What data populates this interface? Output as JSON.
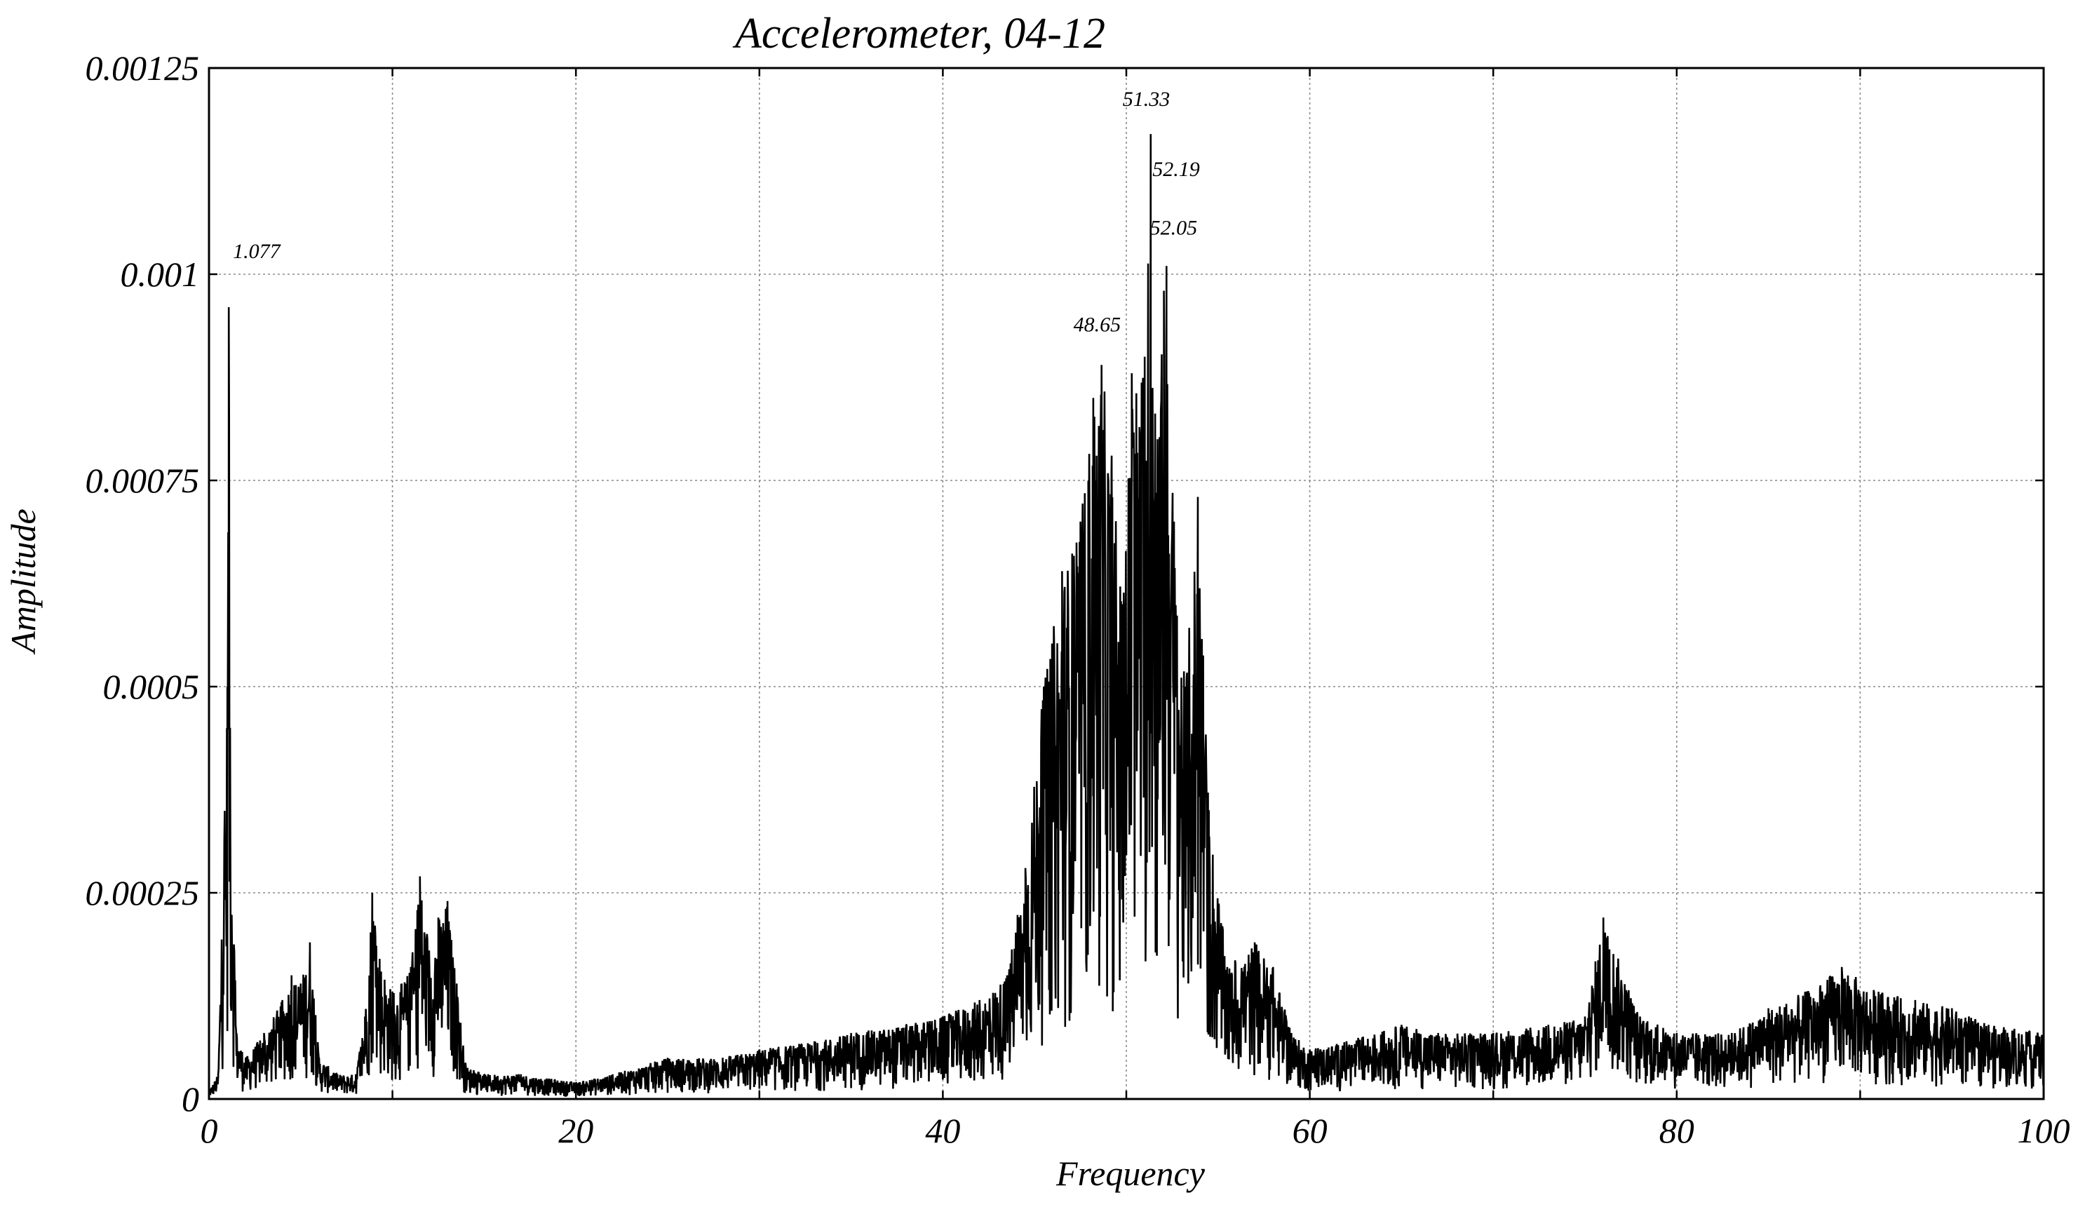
{
  "chart_data": {
    "type": "line",
    "title": "Accelerometer, 04-12",
    "xlabel": "Frequency",
    "ylabel": "Amplitude",
    "xlim": [
      0,
      100
    ],
    "ylim": [
      0,
      0.00125
    ],
    "grid": true,
    "x_ticks": [
      0,
      20,
      40,
      60,
      80,
      100
    ],
    "x_tick_labels": [
      "0",
      "20",
      "40",
      "60",
      "80",
      "100"
    ],
    "x_minor_ticks": [
      10,
      30,
      50,
      70,
      90
    ],
    "y_ticks": [
      0,
      0.00025,
      0.0005,
      0.00075,
      0.001,
      0.00125
    ],
    "y_tick_labels": [
      "0",
      "0.00025",
      "0.0005",
      "0.00075",
      "0.001",
      "0.00125"
    ],
    "series": [
      {
        "color": "#000000",
        "x": [
          0,
          0.5,
          1.0,
          1.077,
          1.15,
          1.5,
          2,
          3,
          4,
          4.5,
          5,
          5.5,
          6,
          7,
          8,
          8.5,
          8.9,
          9.3,
          10,
          10.5,
          11,
          11.5,
          12,
          12.5,
          13,
          13.5,
          14,
          15,
          17,
          20,
          22,
          25,
          28,
          30,
          33,
          35,
          38,
          40,
          42,
          43.5,
          44.5,
          45.5,
          46.5,
          47.5,
          48.2,
          48.65,
          49.2,
          49.8,
          50.3,
          51.0,
          51.33,
          51.7,
          52.05,
          52.19,
          52.6,
          53.2,
          53.9,
          54.5,
          55.5,
          57,
          58,
          59,
          60,
          62,
          65,
          67,
          70,
          73,
          75,
          76,
          78,
          80,
          83,
          85,
          87,
          89,
          91,
          93,
          95,
          97,
          100
        ],
        "values": [
          1e-05,
          3e-05,
          0.0005,
          0.00096,
          0.00045,
          8e-05,
          5e-05,
          8e-05,
          0.00012,
          0.00015,
          0.00014,
          0.00019,
          5e-05,
          3e-05,
          3e-05,
          0.0001,
          0.00025,
          0.00017,
          0.00013,
          0.00014,
          0.00016,
          0.00027,
          0.00018,
          0.00022,
          0.00024,
          0.00014,
          4e-05,
          3e-05,
          3e-05,
          2e-05,
          3e-05,
          5e-05,
          5e-05,
          6e-05,
          7e-05,
          8e-05,
          9e-05,
          0.0001,
          0.00012,
          0.00015,
          0.00028,
          0.0005,
          0.00064,
          0.0007,
          0.00085,
          0.00089,
          0.00078,
          0.0006,
          0.00088,
          0.0009,
          0.00117,
          0.0008,
          0.00098,
          0.00101,
          0.0007,
          0.0005,
          0.00073,
          0.00035,
          0.00016,
          0.00019,
          0.00016,
          8e-05,
          6e-05,
          7e-05,
          9e-05,
          8e-05,
          8e-05,
          9e-05,
          0.0001,
          0.00022,
          0.0001,
          8e-05,
          8e-05,
          0.00011,
          0.00013,
          0.00016,
          0.00013,
          0.00012,
          0.00011,
          9e-05,
          8e-05
        ]
      }
    ],
    "annotations": [
      {
        "text": "1.077",
        "x": 1.077,
        "y": 0.00096
      },
      {
        "text": "48.65",
        "x": 48.65,
        "y": 0.00089
      },
      {
        "text": "51.33",
        "x": 51.33,
        "y": 0.00117
      },
      {
        "text": "52.19",
        "x": 52.19,
        "y": 0.00101
      },
      {
        "text": "52.05",
        "x": 52.05,
        "y": 0.00098
      }
    ]
  }
}
